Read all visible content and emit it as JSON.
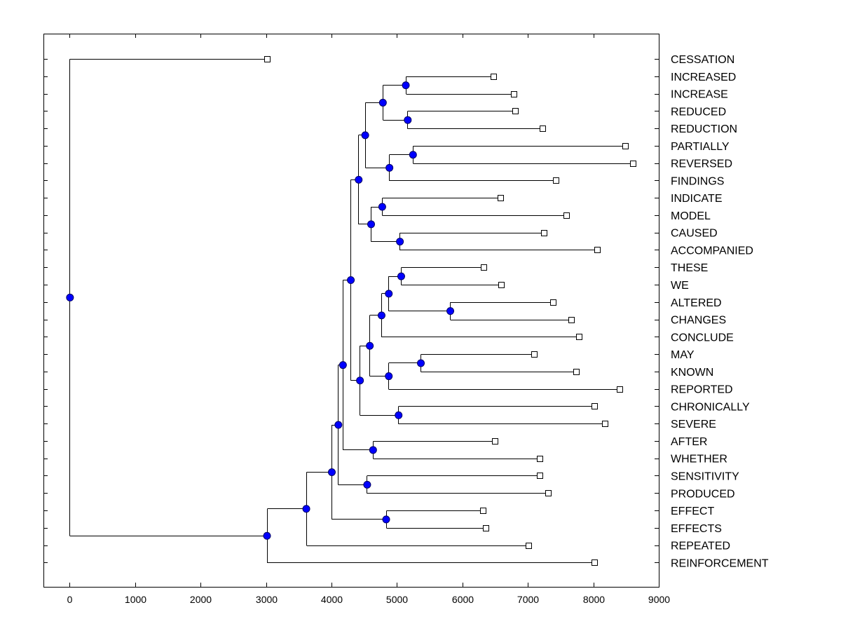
{
  "chart_data": {
    "type": "dendrogram",
    "title": "",
    "xlabel": "",
    "ylabel": "",
    "xlim": [
      -400,
      9000
    ],
    "xticks": [
      0,
      1000,
      2000,
      3000,
      4000,
      5000,
      6000,
      7000,
      8000,
      9000
    ],
    "xtick_labels": [
      "0",
      "1000",
      "2000",
      "3000",
      "4000",
      "5000",
      "6000",
      "7000",
      "8000",
      "9000"
    ],
    "node_color": "#0000ff",
    "leaves": [
      {
        "label": "CESSATION",
        "x": 3020
      },
      {
        "label": "INCREASED",
        "x": 6470
      },
      {
        "label": "INCREASE",
        "x": 6780
      },
      {
        "label": "REDUCED",
        "x": 6810
      },
      {
        "label": "REDUCTION",
        "x": 7220
      },
      {
        "label": "PARTIALLY",
        "x": 8490
      },
      {
        "label": "REVERSED",
        "x": 8600
      },
      {
        "label": "FINDINGS",
        "x": 7430
      },
      {
        "label": "INDICATE",
        "x": 6580
      },
      {
        "label": "MODEL",
        "x": 7590
      },
      {
        "label": "CAUSED",
        "x": 7240
      },
      {
        "label": "ACCOMPANIED",
        "x": 8060
      },
      {
        "label": "THESE",
        "x": 6320
      },
      {
        "label": "WE",
        "x": 6590
      },
      {
        "label": "ALTERED",
        "x": 7380
      },
      {
        "label": "CHANGES",
        "x": 7660
      },
      {
        "label": "CONCLUDE",
        "x": 7780
      },
      {
        "label": "MAY",
        "x": 7090
      },
      {
        "label": "KNOWN",
        "x": 7740
      },
      {
        "label": "REPORTED",
        "x": 8400
      },
      {
        "label": "CHRONICALLY",
        "x": 8020
      },
      {
        "label": "SEVERE",
        "x": 8180
      },
      {
        "label": "AFTER",
        "x": 6500
      },
      {
        "label": "WHETHER",
        "x": 7180
      },
      {
        "label": "SENSITIVITY",
        "x": 7180
      },
      {
        "label": "PRODUCED",
        "x": 7310
      },
      {
        "label": "EFFECT",
        "x": 6310
      },
      {
        "label": "EFFECTS",
        "x": 6360
      },
      {
        "label": "REPEATED",
        "x": 7010
      },
      {
        "label": "REINFORCEMENT",
        "x": 8020
      }
    ],
    "merges": [
      {
        "id": "m1",
        "x": 5130,
        "children": [
          1,
          2
        ]
      },
      {
        "id": "m2",
        "x": 5160,
        "children": [
          3,
          4
        ]
      },
      {
        "id": "m3",
        "x": 4780,
        "children": [
          "m1",
          "m2"
        ]
      },
      {
        "id": "m4",
        "x": 5240,
        "children": [
          5,
          6
        ]
      },
      {
        "id": "m5",
        "x": 4880,
        "children": [
          "m4",
          7
        ]
      },
      {
        "id": "m6",
        "x": 4510,
        "children": [
          "m3",
          "m5"
        ]
      },
      {
        "id": "m7",
        "x": 4770,
        "children": [
          8,
          9
        ]
      },
      {
        "id": "m8",
        "x": 5040,
        "children": [
          10,
          11
        ]
      },
      {
        "id": "m9",
        "x": 4600,
        "children": [
          "m7",
          "m8"
        ]
      },
      {
        "id": "m10",
        "x": 4410,
        "children": [
          "m6",
          "m9"
        ]
      },
      {
        "id": "m11",
        "x": 5060,
        "children": [
          12,
          13
        ]
      },
      {
        "id": "m12",
        "x": 5810,
        "children": [
          14,
          15
        ]
      },
      {
        "id": "m13",
        "x": 4870,
        "children": [
          "m11",
          "m12"
        ]
      },
      {
        "id": "m14",
        "x": 4760,
        "children": [
          "m13",
          16
        ]
      },
      {
        "id": "m15",
        "x": 5360,
        "children": [
          17,
          18
        ]
      },
      {
        "id": "m16",
        "x": 4870,
        "children": [
          "m15",
          19
        ]
      },
      {
        "id": "m17",
        "x": 4580,
        "children": [
          "m14",
          "m16"
        ]
      },
      {
        "id": "m18",
        "x": 5020,
        "children": [
          20,
          21
        ]
      },
      {
        "id": "m19",
        "x": 4430,
        "children": [
          "m17",
          "m18"
        ]
      },
      {
        "id": "m20",
        "x": 4290,
        "children": [
          "m10",
          "m19"
        ]
      },
      {
        "id": "m21",
        "x": 4630,
        "children": [
          22,
          23
        ]
      },
      {
        "id": "m22",
        "x": 4170,
        "children": [
          "m20",
          "m21"
        ]
      },
      {
        "id": "m23",
        "x": 4540,
        "children": [
          24,
          25
        ]
      },
      {
        "id": "m24",
        "x": 4100,
        "children": [
          "m22",
          "m23"
        ]
      },
      {
        "id": "m25",
        "x": 4830,
        "children": [
          26,
          27
        ]
      },
      {
        "id": "m26",
        "x": 4000,
        "children": [
          "m24",
          "m25"
        ]
      },
      {
        "id": "m27",
        "x": 3610,
        "children": [
          "m26",
          28
        ]
      },
      {
        "id": "m28",
        "x": 3010,
        "children": [
          "m27",
          29
        ]
      },
      {
        "id": "m29",
        "x": 0,
        "children": [
          0,
          "m28"
        ]
      }
    ]
  }
}
